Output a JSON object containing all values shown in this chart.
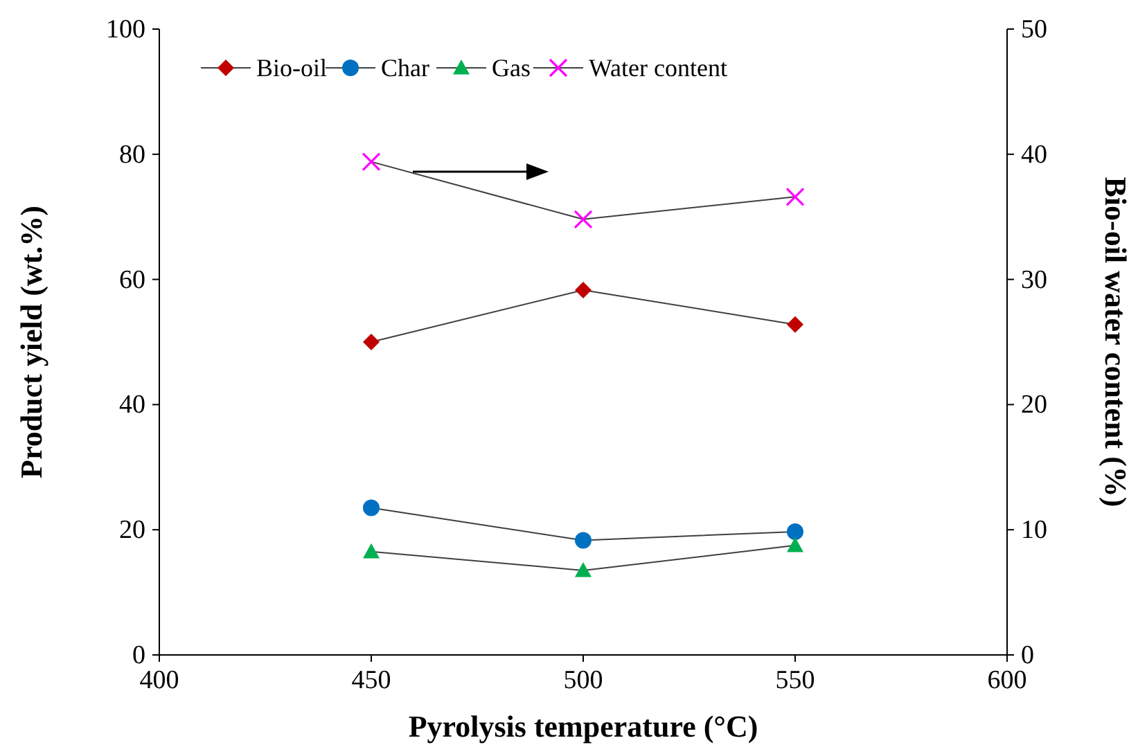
{
  "chart_data": {
    "type": "line",
    "xlabel": "Pyrolysis temperature (°C)",
    "ylabel": "Product yield (wt.%)",
    "y2label": "Bio-oil water content  (%)",
    "x": [
      450,
      500,
      550
    ],
    "xlim": [
      400,
      600
    ],
    "xticks": [
      400,
      450,
      500,
      550,
      600
    ],
    "ylim": [
      0,
      100
    ],
    "yticks": [
      0,
      20,
      40,
      60,
      80,
      100
    ],
    "y2lim": [
      0,
      50
    ],
    "y2ticks": [
      0,
      10,
      20,
      30,
      40,
      50
    ],
    "grid": false,
    "legend": "top",
    "line_style": "solid",
    "series": [
      {
        "name": "Bio-oil",
        "color": "#c00000",
        "marker": "diamond",
        "values": [
          50,
          58.3,
          52.8
        ]
      },
      {
        "name": "Char",
        "color": "#0070c0",
        "marker": "circle",
        "values": [
          23.5,
          18.3,
          19.7
        ]
      },
      {
        "name": "Gas",
        "color": "#00b050",
        "marker": "triangle",
        "values": [
          16.5,
          13.5,
          17.5
        ]
      },
      {
        "name": "Water content",
        "color": "#ff00ff",
        "marker": "cross",
        "axis": "y2",
        "values": [
          39.4,
          34.8,
          36.6
        ]
      }
    ]
  }
}
